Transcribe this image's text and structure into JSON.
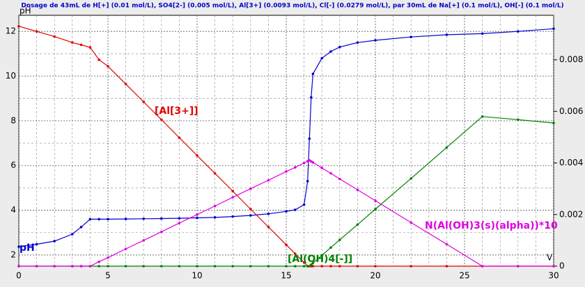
{
  "chart_data": {
    "type": "line",
    "title": "Dosage de 43mL de H[+] (0.01 mol/L), SO4[2-] (0.005 mol/L), Al[3+] (0.0093 mol/L), Cl[-] (0.0279 mol/L),  par 30mL  de Na[+] (0.1 mol/L), OH[-] (0.1 mol/L)",
    "x_label": "V",
    "y_label": "pH",
    "x": [
      0,
      1,
      2,
      3,
      3.5,
      4,
      4.5,
      5,
      6,
      7,
      8,
      9,
      10,
      11,
      12,
      13,
      14,
      15,
      15.5,
      16,
      16.2,
      16.3,
      16.4,
      16.5,
      17,
      17.5,
      18,
      19,
      20,
      22,
      24,
      26,
      28,
      30
    ],
    "xlim": [
      0,
      30
    ],
    "xticks": [
      0,
      5,
      10,
      15,
      20,
      25,
      30
    ],
    "ylim": [
      1.5,
      12.72
    ],
    "yticks": [
      2,
      4,
      6,
      8,
      10,
      12
    ],
    "y2lim": [
      0,
      0.009725
    ],
    "y2ticks": [
      0,
      0.002,
      0.004,
      0.006,
      0.008
    ],
    "grid": true,
    "series": [
      {
        "name": "pH",
        "color": "#0000d0",
        "axis": "y",
        "values": [
          2.37,
          2.48,
          2.62,
          2.93,
          3.25,
          3.6,
          3.6,
          3.6,
          3.61,
          3.62,
          3.63,
          3.64,
          3.66,
          3.68,
          3.72,
          3.77,
          3.84,
          3.95,
          4.02,
          4.25,
          5.3,
          7.2,
          9.05,
          10.1,
          10.8,
          11.1,
          11.3,
          11.5,
          11.6,
          11.75,
          11.85,
          11.9,
          12.0,
          12.12
        ]
      },
      {
        "name": "[Al[3+]]",
        "color": "#e00000",
        "axis": "y2",
        "values": [
          0.0093,
          0.0091,
          0.0089,
          0.00867,
          0.00858,
          0.00848,
          0.008,
          0.00775,
          0.00706,
          0.00637,
          0.00568,
          0.00498,
          0.00429,
          0.0036,
          0.00291,
          0.00221,
          0.00152,
          0.00083,
          0.00048,
          0.00014,
          0,
          0,
          0,
          0,
          0,
          0,
          0,
          0,
          0,
          0,
          0,
          0,
          0,
          0
        ]
      },
      {
        "name": "[Al(OH)4[-]]",
        "color": "#008000",
        "axis": "y2",
        "values": [
          0,
          0,
          0,
          0,
          0,
          0,
          0,
          0,
          0,
          0,
          0,
          0,
          0,
          0,
          0,
          0,
          0,
          0,
          0,
          0,
          0,
          0,
          6e-05,
          0.00012,
          0.00042,
          0.00072,
          0.00102,
          0.00161,
          0.00221,
          0.0034,
          0.0046,
          0.0058,
          0.00568,
          0.00555
        ]
      },
      {
        "name": "N(Al(OH)3(s)(alpha))*10",
        "color": "#e000e0",
        "axis": "y2",
        "values": [
          0,
          0,
          0,
          0,
          0,
          0,
          0.00017,
          0.00033,
          0.00067,
          0.001,
          0.00133,
          0.00167,
          0.002,
          0.00233,
          0.00267,
          0.003,
          0.00333,
          0.00367,
          0.00383,
          0.004,
          0.00407,
          0.0041,
          0.00406,
          0.00402,
          0.00381,
          0.0036,
          0.00338,
          0.00296,
          0.00254,
          0.00169,
          0.00085,
          0,
          0,
          0
        ]
      }
    ]
  }
}
